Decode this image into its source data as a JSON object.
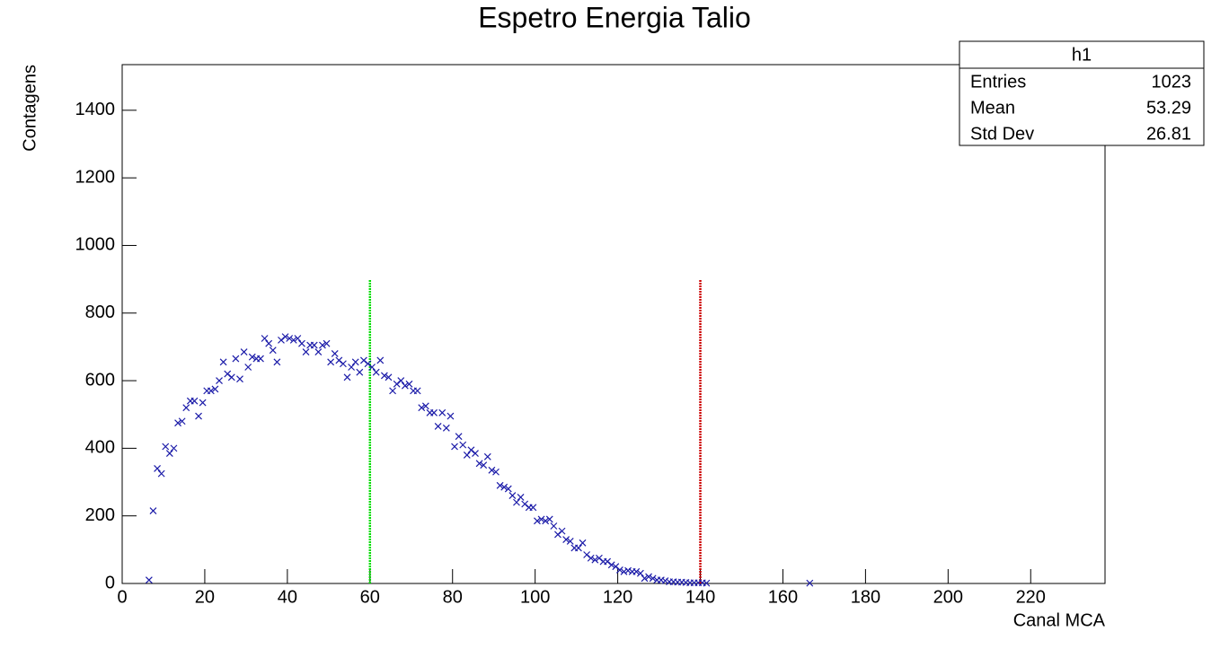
{
  "chart_data": {
    "type": "scatter",
    "title": "Espetro Energia Talio",
    "xlabel": "Canal MCA",
    "ylabel": "Contagens",
    "x": [
      6.5,
      7.5,
      8.5,
      9.5,
      10.5,
      11.5,
      12.5,
      13.5,
      14.5,
      15.5,
      16.5,
      17.5,
      18.5,
      19.5,
      20.5,
      21.5,
      22.5,
      23.5,
      24.5,
      25.5,
      26.5,
      27.5,
      28.5,
      29.5,
      30.5,
      31.5,
      32.5,
      33.5,
      34.5,
      35.5,
      36.5,
      37.5,
      38.5,
      39.5,
      40.5,
      41.5,
      42.5,
      43.5,
      44.5,
      45.5,
      46.5,
      47.5,
      48.5,
      49.5,
      50.5,
      51.5,
      52.5,
      53.5,
      54.5,
      55.5,
      56.5,
      57.5,
      58.5,
      59.5,
      60.5,
      61.5,
      62.5,
      63.5,
      64.5,
      65.5,
      66.5,
      67.5,
      68.5,
      69.5,
      70.5,
      71.5,
      72.5,
      73.5,
      74.5,
      75.5,
      76.5,
      77.5,
      78.5,
      79.5,
      80.5,
      81.5,
      82.5,
      83.5,
      84.5,
      85.5,
      86.5,
      87.5,
      88.5,
      89.5,
      90.5,
      91.5,
      92.5,
      93.5,
      94.5,
      95.5,
      96.5,
      97.5,
      98.5,
      99.5,
      100.5,
      101.5,
      102.5,
      103.5,
      104.5,
      105.5,
      106.5,
      107.5,
      108.5,
      109.5,
      110.5,
      111.5,
      112.5,
      113.5,
      114.5,
      115.5,
      116.5,
      117.5,
      118.5,
      119.5,
      120.5,
      121.5,
      122.5,
      123.5,
      124.5,
      125.5,
      126.5,
      127.5,
      128.5,
      129.5,
      130.5,
      131.5,
      132.5,
      133.5,
      134.5,
      135.5,
      136.5,
      137.5,
      138.5,
      139.5,
      140.5,
      141.5,
      166.5
    ],
    "series": [
      {
        "name": "h1",
        "color": "#1a1aa8",
        "values": [
          10,
          215,
          340,
          325,
          405,
          385,
          400,
          475,
          480,
          520,
          540,
          540,
          495,
          535,
          570,
          570,
          575,
          600,
          655,
          620,
          610,
          665,
          605,
          685,
          640,
          670,
          665,
          665,
          725,
          710,
          690,
          655,
          720,
          730,
          725,
          720,
          725,
          710,
          685,
          705,
          705,
          685,
          705,
          710,
          655,
          680,
          660,
          650,
          610,
          640,
          655,
          625,
          660,
          650,
          640,
          625,
          660,
          615,
          610,
          570,
          590,
          600,
          585,
          590,
          570,
          570,
          520,
          525,
          505,
          505,
          465,
          505,
          460,
          495,
          405,
          435,
          410,
          380,
          395,
          385,
          355,
          350,
          375,
          335,
          330,
          290,
          285,
          280,
          260,
          240,
          255,
          235,
          225,
          225,
          185,
          190,
          185,
          190,
          170,
          145,
          155,
          130,
          125,
          105,
          105,
          120,
          85,
          75,
          70,
          75,
          65,
          65,
          55,
          50,
          40,
          35,
          38,
          35,
          35,
          30,
          15,
          20,
          15,
          10,
          10,
          8,
          5,
          5,
          4,
          4,
          3,
          2,
          2,
          2,
          2,
          1,
          1
        ]
      }
    ],
    "vlines": [
      {
        "x": 60,
        "ylim": [
          0,
          900
        ],
        "color": "#00dd00"
      },
      {
        "x": 140,
        "ylim": [
          0,
          900
        ],
        "color": "#cc0000"
      }
    ],
    "xlim": [
      0,
      238
    ],
    "ylim": [
      0,
      1535
    ],
    "xticks": [
      0,
      20,
      40,
      60,
      80,
      100,
      120,
      140,
      160,
      180,
      200,
      220
    ],
    "yticks": [
      0,
      200,
      400,
      600,
      800,
      1000,
      1200,
      1400
    ],
    "grid": false,
    "stats": {
      "title": "h1",
      "rows": [
        {
          "label": "Entries",
          "value": 1023
        },
        {
          "label": "Mean",
          "value": 53.29
        },
        {
          "label": "Std Dev",
          "value": 26.81
        }
      ]
    }
  }
}
